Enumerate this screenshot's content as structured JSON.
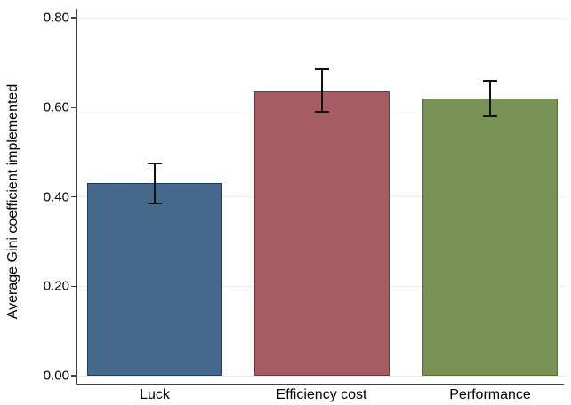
{
  "chart_data": {
    "type": "bar",
    "title": "",
    "xlabel": "",
    "ylabel": "Average Gini coefficient implemented",
    "categories": [
      "Luck",
      "Efficiency cost",
      "Performance"
    ],
    "values": [
      0.43,
      0.635,
      0.62
    ],
    "error_low": [
      0.385,
      0.59,
      0.58
    ],
    "error_high": [
      0.475,
      0.685,
      0.66
    ],
    "bar_fill_colors": [
      "#46698b",
      "#a55d63",
      "#7a9156"
    ],
    "bar_border_colors": [
      "#1d3d60",
      "#7c343d",
      "#566f2d"
    ],
    "error_bar_color": "#111111",
    "ylim": [
      0.0,
      0.8
    ],
    "yticks": [
      0.0,
      0.2,
      0.4,
      0.6,
      0.8
    ],
    "ytick_labels": [
      "0.00",
      "0.20",
      "0.40",
      "0.60",
      "0.80"
    ],
    "grid": "horizontal",
    "gridline_color": "#e4efee",
    "axis_color": "#3f3f3f",
    "background_color": "#ffffff",
    "legend": "none"
  }
}
